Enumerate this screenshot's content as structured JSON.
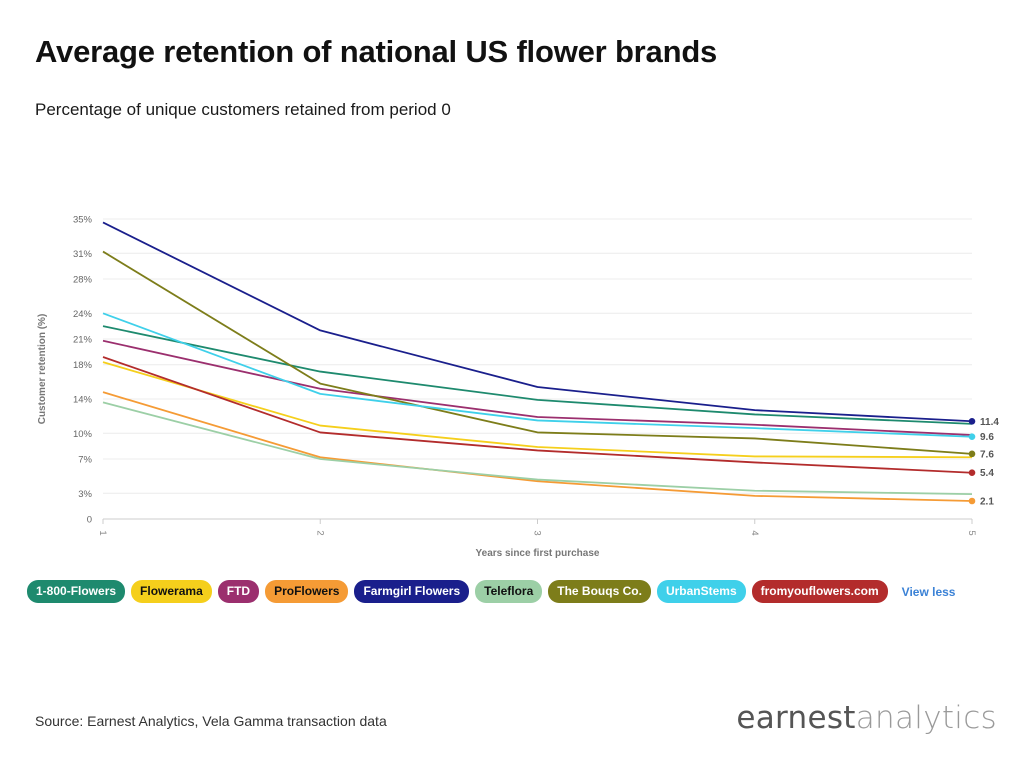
{
  "title": "Average retention of national US flower brands",
  "subtitle": "Percentage of unique customers retained from period 0",
  "view_less": "View less",
  "source": "Source: Earnest Analytics, Vela Gamma transaction data",
  "logo": {
    "part1": "earnest",
    "part2": "analytics"
  },
  "chart_data": {
    "type": "line",
    "xlabel": "Years since first purchase",
    "ylabel": "Customer retention (%)",
    "x": [
      1,
      2,
      3,
      4,
      5
    ],
    "ylim": [
      0,
      35
    ],
    "yticks": [
      0,
      3,
      7,
      10,
      14,
      18,
      21,
      24,
      28,
      31,
      35
    ],
    "ytick_labels": [
      "0",
      "3%",
      "7%",
      "10%",
      "14%",
      "18%",
      "21%",
      "24%",
      "28%",
      "31%",
      "35%"
    ],
    "grid": true,
    "series": [
      {
        "name": "1-800-Flowers",
        "color": "#1e8a6e",
        "values": [
          22.5,
          17.2,
          13.9,
          12.2,
          11.1
        ]
      },
      {
        "name": "Flowerama",
        "color": "#f5cf1c",
        "values": [
          18.3,
          10.9,
          8.4,
          7.3,
          7.2
        ]
      },
      {
        "name": "FTD",
        "color": "#9b2f6e",
        "values": [
          20.8,
          15.2,
          11.9,
          11.0,
          9.8
        ]
      },
      {
        "name": "ProFlowers",
        "color": "#f59b35",
        "values": [
          14.8,
          7.2,
          4.4,
          2.7,
          2.1
        ],
        "end_label": "2.1"
      },
      {
        "name": "Farmgirl Flowers",
        "color": "#1a1f8c",
        "values": [
          34.6,
          22.0,
          15.4,
          12.7,
          11.4
        ],
        "end_label": "11.4"
      },
      {
        "name": "Teleflora",
        "color": "#9ccfa6",
        "values": [
          13.6,
          7.0,
          4.6,
          3.3,
          2.9
        ]
      },
      {
        "name": "The Bouqs Co.",
        "color": "#7d7d1a",
        "values": [
          31.2,
          15.8,
          10.1,
          9.4,
          7.6
        ],
        "end_label": "7.6"
      },
      {
        "name": "UrbanStems",
        "color": "#3fd0ea",
        "values": [
          24.0,
          14.6,
          11.5,
          10.6,
          9.6
        ],
        "end_label": "9.6"
      },
      {
        "name": "fromyouflowers.com",
        "color": "#b32c2c",
        "values": [
          18.9,
          10.1,
          8.0,
          6.6,
          5.4
        ],
        "end_label": "5.4"
      }
    ]
  }
}
